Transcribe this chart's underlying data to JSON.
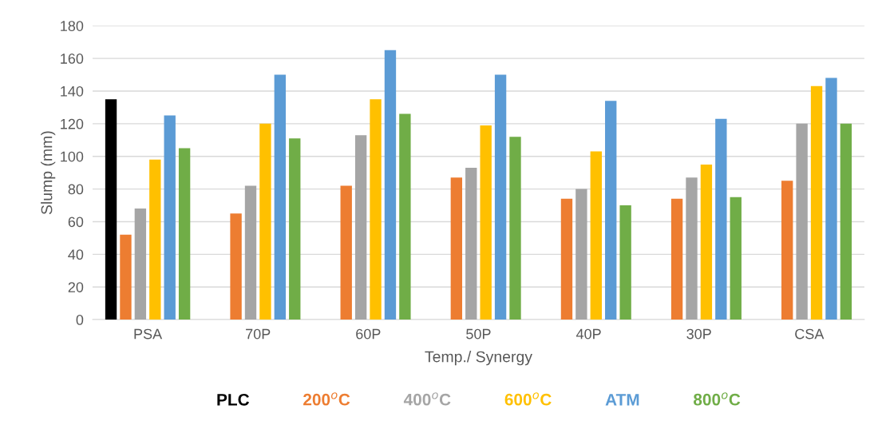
{
  "chart_data": {
    "type": "bar",
    "xlabel": "Temp./ Synergy",
    "ylabel": "Slump (mm)",
    "categories": [
      "PSA",
      "70P",
      "60P",
      "50P",
      "40P",
      "30P",
      "CSA"
    ],
    "series": [
      {
        "name": "PLC",
        "color": "#000000",
        "values": [
          135,
          null,
          null,
          null,
          null,
          null,
          null
        ]
      },
      {
        "name": "200$^{o}$C",
        "color": "#ed7d31",
        "values": [
          52,
          65,
          82,
          87,
          74,
          74,
          85
        ]
      },
      {
        "name": "400$^{o}$C",
        "color": "#a5a5a5",
        "values": [
          68,
          82,
          113,
          93,
          80,
          87,
          120
        ]
      },
      {
        "name": "600$^{o}$C",
        "color": "#ffc000",
        "values": [
          98,
          120,
          135,
          119,
          103,
          95,
          143
        ]
      },
      {
        "name": "ATM",
        "color": "#5b9bd5",
        "values": [
          125,
          150,
          165,
          150,
          134,
          123,
          148
        ]
      },
      {
        "name": "800$^{o}$C",
        "color": "#70ad47",
        "values": [
          105,
          111,
          126,
          112,
          70,
          75,
          120
        ]
      }
    ],
    "ylim": [
      0,
      180
    ],
    "yticks": [
      0,
      20,
      40,
      60,
      80,
      100,
      120,
      140,
      160,
      180
    ],
    "grid": "y",
    "legend": "bottom"
  }
}
